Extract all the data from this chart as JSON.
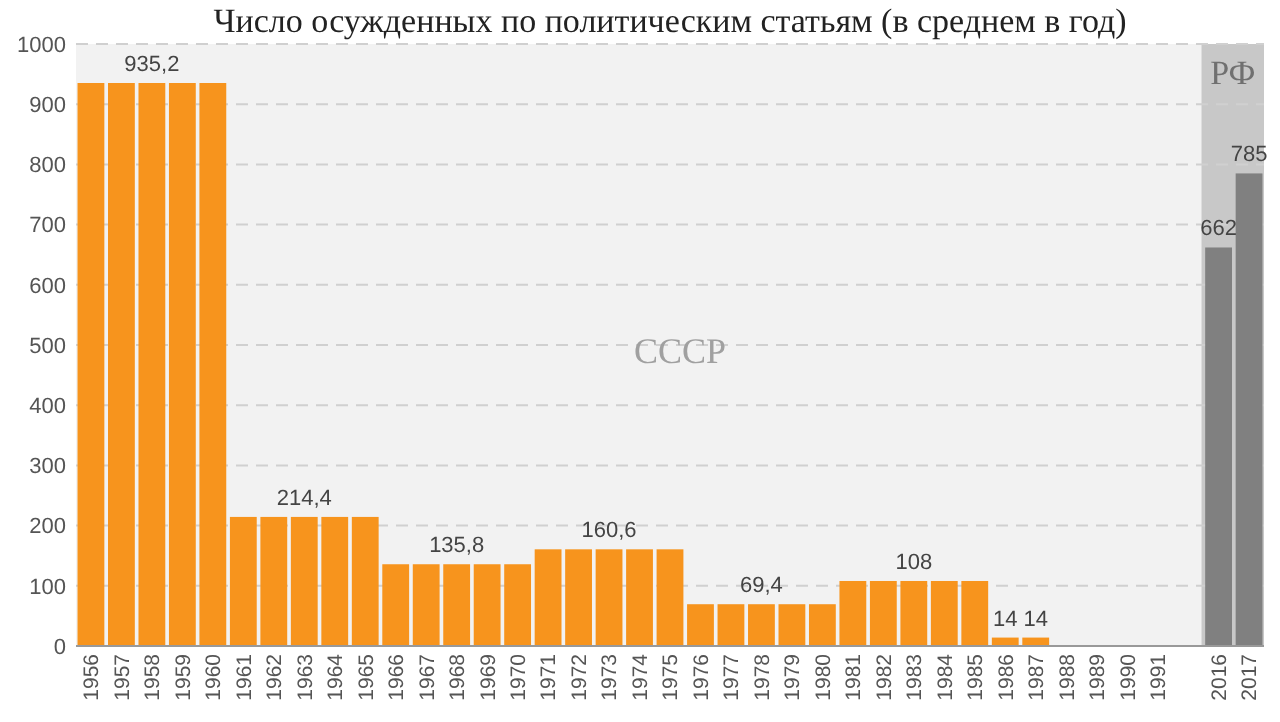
{
  "chart_data": {
    "type": "bar",
    "title": "Число осужденных по политическим статьям (в среднем в год)",
    "categories": [
      "1956",
      "1957",
      "1958",
      "1959",
      "1960",
      "1961",
      "1962",
      "1963",
      "1964",
      "1965",
      "1966",
      "1967",
      "1968",
      "1969",
      "1970",
      "1971",
      "1972",
      "1973",
      "1974",
      "1975",
      "1976",
      "1977",
      "1978",
      "1979",
      "1980",
      "1981",
      "1982",
      "1983",
      "1984",
      "1985",
      "1986",
      "1987",
      "1988",
      "1989",
      "1990",
      "1991",
      null,
      "2016",
      "2017"
    ],
    "values": [
      935.2,
      935.2,
      935.2,
      935.2,
      935.2,
      214.4,
      214.4,
      214.4,
      214.4,
      214.4,
      135.8,
      135.8,
      135.8,
      135.8,
      135.8,
      160.6,
      160.6,
      160.6,
      160.6,
      160.6,
      69.4,
      69.4,
      69.4,
      69.4,
      69.4,
      108,
      108,
      108,
      108,
      108,
      14,
      14,
      null,
      null,
      null,
      null,
      null,
      662,
      785
    ],
    "colors": [
      "#f7941d",
      "#f7941d",
      "#f7941d",
      "#f7941d",
      "#f7941d",
      "#f7941d",
      "#f7941d",
      "#f7941d",
      "#f7941d",
      "#f7941d",
      "#f7941d",
      "#f7941d",
      "#f7941d",
      "#f7941d",
      "#f7941d",
      "#f7941d",
      "#f7941d",
      "#f7941d",
      "#f7941d",
      "#f7941d",
      "#f7941d",
      "#f7941d",
      "#f7941d",
      "#f7941d",
      "#f7941d",
      "#f7941d",
      "#f7941d",
      "#f7941d",
      "#f7941d",
      "#f7941d",
      "#f7941d",
      "#f7941d",
      null,
      null,
      null,
      null,
      null,
      "#808080",
      "#808080"
    ],
    "value_labels": [
      null,
      null,
      "935,2",
      null,
      null,
      null,
      null,
      "214,4",
      null,
      null,
      null,
      null,
      "135,8",
      null,
      null,
      null,
      null,
      "160,6",
      null,
      null,
      null,
      null,
      "69,4",
      null,
      null,
      null,
      null,
      "108",
      null,
      null,
      "14",
      "14",
      null,
      null,
      null,
      null,
      null,
      "662",
      "785"
    ],
    "ylim": [
      0,
      1000
    ],
    "yticks": [
      0,
      100,
      200,
      300,
      400,
      500,
      600,
      700,
      800,
      900,
      1000
    ],
    "grid": "y",
    "bands": [
      {
        "axis": "x",
        "from": "2016",
        "to": "2017",
        "label": "РФ",
        "color": "#c8c8c8"
      }
    ],
    "annotations": [
      "СССР"
    ]
  }
}
